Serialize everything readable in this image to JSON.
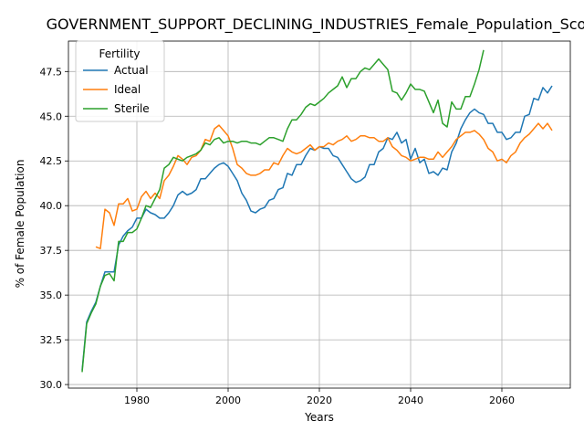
{
  "chart_data": {
    "type": "line",
    "title": "GOVERNMENT_SUPPORT_DECLINING_INDUSTRIES_Female_Population_Scori",
    "xlabel": "Years",
    "ylabel": "% of Female Population",
    "xlim": [
      1965,
      2075
    ],
    "ylim": [
      29.8,
      49.2
    ],
    "x_ticks": [
      1980,
      2000,
      2020,
      2040,
      2060
    ],
    "y_ticks": [
      30.0,
      32.5,
      35.0,
      37.5,
      40.0,
      42.5,
      45.0,
      47.5
    ],
    "grid": true,
    "legend": {
      "title": "Fertility",
      "placement": "upper-left"
    },
    "series": [
      {
        "name": "Actual",
        "color": "#1f77b4",
        "points": [
          [
            1968,
            30.8
          ],
          [
            1969,
            33.5
          ],
          [
            1970,
            34.1
          ],
          [
            1971,
            34.6
          ],
          [
            1972,
            35.5
          ],
          [
            1973,
            36.3
          ],
          [
            1974,
            36.3
          ],
          [
            1975,
            36.3
          ],
          [
            1976,
            37.8
          ],
          [
            1977,
            38.3
          ],
          [
            1978,
            38.6
          ],
          [
            1979,
            38.8
          ],
          [
            1980,
            39.3
          ],
          [
            1981,
            39.3
          ],
          [
            1982,
            39.8
          ],
          [
            1983,
            39.6
          ],
          [
            1984,
            39.5
          ],
          [
            1985,
            39.3
          ],
          [
            1986,
            39.3
          ],
          [
            1987,
            39.6
          ],
          [
            1988,
            40.0
          ],
          [
            1989,
            40.6
          ],
          [
            1990,
            40.8
          ],
          [
            1991,
            40.6
          ],
          [
            1992,
            40.7
          ],
          [
            1993,
            40.9
          ],
          [
            1994,
            41.5
          ],
          [
            1995,
            41.5
          ],
          [
            1996,
            41.8
          ],
          [
            1997,
            42.1
          ],
          [
            1998,
            42.3
          ],
          [
            1999,
            42.4
          ],
          [
            2000,
            42.2
          ],
          [
            2001,
            41.8
          ],
          [
            2002,
            41.4
          ],
          [
            2003,
            40.7
          ],
          [
            2004,
            40.3
          ],
          [
            2005,
            39.7
          ],
          [
            2006,
            39.6
          ],
          [
            2007,
            39.8
          ],
          [
            2008,
            39.9
          ],
          [
            2009,
            40.3
          ],
          [
            2010,
            40.4
          ],
          [
            2011,
            40.9
          ],
          [
            2012,
            41.0
          ],
          [
            2013,
            41.8
          ],
          [
            2014,
            41.7
          ],
          [
            2015,
            42.3
          ],
          [
            2016,
            42.3
          ],
          [
            2017,
            42.8
          ],
          [
            2018,
            43.2
          ],
          [
            2019,
            43.1
          ],
          [
            2020,
            43.3
          ],
          [
            2021,
            43.2
          ],
          [
            2022,
            43.2
          ],
          [
            2023,
            42.8
          ],
          [
            2024,
            42.7
          ],
          [
            2025,
            42.3
          ],
          [
            2026,
            41.9
          ],
          [
            2027,
            41.5
          ],
          [
            2028,
            41.3
          ],
          [
            2029,
            41.4
          ],
          [
            2030,
            41.6
          ],
          [
            2031,
            42.3
          ],
          [
            2032,
            42.3
          ],
          [
            2033,
            43.0
          ],
          [
            2034,
            43.2
          ],
          [
            2035,
            43.8
          ],
          [
            2036,
            43.7
          ],
          [
            2037,
            44.1
          ],
          [
            2038,
            43.5
          ],
          [
            2039,
            43.7
          ],
          [
            2040,
            42.6
          ],
          [
            2041,
            43.2
          ],
          [
            2042,
            42.4
          ],
          [
            2043,
            42.6
          ],
          [
            2044,
            41.8
          ],
          [
            2045,
            41.9
          ],
          [
            2046,
            41.7
          ],
          [
            2047,
            42.1
          ],
          [
            2048,
            42.0
          ],
          [
            2049,
            43.0
          ],
          [
            2050,
            43.5
          ],
          [
            2051,
            44.3
          ],
          [
            2052,
            44.8
          ],
          [
            2053,
            45.2
          ],
          [
            2054,
            45.4
          ],
          [
            2055,
            45.2
          ],
          [
            2056,
            45.1
          ],
          [
            2057,
            44.6
          ],
          [
            2058,
            44.6
          ],
          [
            2059,
            44.1
          ],
          [
            2060,
            44.1
          ],
          [
            2061,
            43.7
          ],
          [
            2062,
            43.8
          ],
          [
            2063,
            44.1
          ],
          [
            2064,
            44.1
          ],
          [
            2065,
            45.0
          ],
          [
            2066,
            45.1
          ],
          [
            2067,
            46.0
          ],
          [
            2068,
            45.9
          ],
          [
            2069,
            46.6
          ],
          [
            2070,
            46.3
          ],
          [
            2071,
            46.7
          ]
        ]
      },
      {
        "name": "Ideal",
        "color": "#ff7f0e",
        "points": [
          [
            1971,
            37.7
          ],
          [
            1972,
            37.6
          ],
          [
            1973,
            39.8
          ],
          [
            1974,
            39.6
          ],
          [
            1975,
            38.9
          ],
          [
            1976,
            40.1
          ],
          [
            1977,
            40.1
          ],
          [
            1978,
            40.4
          ],
          [
            1979,
            39.7
          ],
          [
            1980,
            39.8
          ],
          [
            1981,
            40.5
          ],
          [
            1982,
            40.8
          ],
          [
            1983,
            40.4
          ],
          [
            1984,
            40.7
          ],
          [
            1985,
            40.4
          ],
          [
            1986,
            41.4
          ],
          [
            1987,
            41.7
          ],
          [
            1988,
            42.2
          ],
          [
            1989,
            42.8
          ],
          [
            1990,
            42.6
          ],
          [
            1991,
            42.3
          ],
          [
            1992,
            42.7
          ],
          [
            1993,
            42.8
          ],
          [
            1994,
            43.1
          ],
          [
            1995,
            43.7
          ],
          [
            1996,
            43.6
          ],
          [
            1997,
            44.3
          ],
          [
            1998,
            44.5
          ],
          [
            1999,
            44.2
          ],
          [
            2000,
            43.9
          ],
          [
            2001,
            43.2
          ],
          [
            2002,
            42.3
          ],
          [
            2003,
            42.1
          ],
          [
            2004,
            41.8
          ],
          [
            2005,
            41.7
          ],
          [
            2006,
            41.7
          ],
          [
            2007,
            41.8
          ],
          [
            2008,
            42.0
          ],
          [
            2009,
            42.0
          ],
          [
            2010,
            42.4
          ],
          [
            2011,
            42.3
          ],
          [
            2012,
            42.8
          ],
          [
            2013,
            43.2
          ],
          [
            2014,
            43.0
          ],
          [
            2015,
            42.9
          ],
          [
            2016,
            43.0
          ],
          [
            2017,
            43.2
          ],
          [
            2018,
            43.4
          ],
          [
            2019,
            43.1
          ],
          [
            2020,
            43.3
          ],
          [
            2021,
            43.3
          ],
          [
            2022,
            43.5
          ],
          [
            2023,
            43.4
          ],
          [
            2024,
            43.6
          ],
          [
            2025,
            43.7
          ],
          [
            2026,
            43.9
          ],
          [
            2027,
            43.6
          ],
          [
            2028,
            43.7
          ],
          [
            2029,
            43.9
          ],
          [
            2030,
            43.9
          ],
          [
            2031,
            43.8
          ],
          [
            2032,
            43.8
          ],
          [
            2033,
            43.6
          ],
          [
            2034,
            43.6
          ],
          [
            2035,
            43.8
          ],
          [
            2036,
            43.3
          ],
          [
            2037,
            43.1
          ],
          [
            2038,
            42.8
          ],
          [
            2039,
            42.7
          ],
          [
            2040,
            42.5
          ],
          [
            2041,
            42.6
          ],
          [
            2042,
            42.7
          ],
          [
            2043,
            42.7
          ],
          [
            2044,
            42.6
          ],
          [
            2045,
            42.6
          ],
          [
            2046,
            43.0
          ],
          [
            2047,
            42.7
          ],
          [
            2048,
            43.0
          ],
          [
            2049,
            43.3
          ],
          [
            2050,
            43.7
          ],
          [
            2051,
            43.9
          ],
          [
            2052,
            44.1
          ],
          [
            2053,
            44.1
          ],
          [
            2054,
            44.2
          ],
          [
            2055,
            44.0
          ],
          [
            2056,
            43.7
          ],
          [
            2057,
            43.2
          ],
          [
            2058,
            43.0
          ],
          [
            2059,
            42.5
          ],
          [
            2060,
            42.6
          ],
          [
            2061,
            42.4
          ],
          [
            2062,
            42.8
          ],
          [
            2063,
            43.0
          ],
          [
            2064,
            43.5
          ],
          [
            2065,
            43.8
          ],
          [
            2066,
            44.0
          ],
          [
            2067,
            44.3
          ],
          [
            2068,
            44.6
          ],
          [
            2069,
            44.3
          ],
          [
            2070,
            44.6
          ],
          [
            2071,
            44.2
          ]
        ]
      },
      {
        "name": "Sterile",
        "color": "#2ca02c",
        "points": [
          [
            1968,
            30.7
          ],
          [
            1969,
            33.4
          ],
          [
            1970,
            34.0
          ],
          [
            1971,
            34.5
          ],
          [
            1972,
            35.5
          ],
          [
            1973,
            36.1
          ],
          [
            1974,
            36.2
          ],
          [
            1975,
            35.8
          ],
          [
            1976,
            38.0
          ],
          [
            1977,
            38.0
          ],
          [
            1978,
            38.5
          ],
          [
            1979,
            38.5
          ],
          [
            1980,
            38.7
          ],
          [
            1981,
            39.3
          ],
          [
            1982,
            40.0
          ],
          [
            1983,
            39.9
          ],
          [
            1984,
            40.4
          ],
          [
            1985,
            40.9
          ],
          [
            1986,
            42.1
          ],
          [
            1987,
            42.3
          ],
          [
            1988,
            42.7
          ],
          [
            1989,
            42.6
          ],
          [
            1990,
            42.5
          ],
          [
            1991,
            42.7
          ],
          [
            1992,
            42.8
          ],
          [
            1993,
            42.9
          ],
          [
            1994,
            43.1
          ],
          [
            1995,
            43.5
          ],
          [
            1996,
            43.4
          ],
          [
            1997,
            43.7
          ],
          [
            1998,
            43.8
          ],
          [
            1999,
            43.5
          ],
          [
            2000,
            43.6
          ],
          [
            2001,
            43.6
          ],
          [
            2002,
            43.5
          ],
          [
            2003,
            43.6
          ],
          [
            2004,
            43.6
          ],
          [
            2005,
            43.5
          ],
          [
            2006,
            43.5
          ],
          [
            2007,
            43.4
          ],
          [
            2008,
            43.6
          ],
          [
            2009,
            43.8
          ],
          [
            2010,
            43.8
          ],
          [
            2011,
            43.7
          ],
          [
            2012,
            43.6
          ],
          [
            2013,
            44.3
          ],
          [
            2014,
            44.8
          ],
          [
            2015,
            44.8
          ],
          [
            2016,
            45.1
          ],
          [
            2017,
            45.5
          ],
          [
            2018,
            45.7
          ],
          [
            2019,
            45.6
          ],
          [
            2020,
            45.8
          ],
          [
            2021,
            46.0
          ],
          [
            2022,
            46.3
          ],
          [
            2023,
            46.5
          ],
          [
            2024,
            46.7
          ],
          [
            2025,
            47.2
          ],
          [
            2026,
            46.6
          ],
          [
            2027,
            47.1
          ],
          [
            2028,
            47.1
          ],
          [
            2029,
            47.5
          ],
          [
            2030,
            47.7
          ],
          [
            2031,
            47.6
          ],
          [
            2032,
            47.9
          ],
          [
            2033,
            48.2
          ],
          [
            2034,
            47.9
          ],
          [
            2035,
            47.6
          ],
          [
            2036,
            46.4
          ],
          [
            2037,
            46.3
          ],
          [
            2038,
            45.9
          ],
          [
            2039,
            46.3
          ],
          [
            2040,
            46.8
          ],
          [
            2041,
            46.5
          ],
          [
            2042,
            46.5
          ],
          [
            2043,
            46.4
          ],
          [
            2044,
            45.8
          ],
          [
            2045,
            45.2
          ],
          [
            2046,
            45.9
          ],
          [
            2047,
            44.6
          ],
          [
            2048,
            44.4
          ],
          [
            2049,
            45.8
          ],
          [
            2050,
            45.4
          ],
          [
            2051,
            45.4
          ],
          [
            2052,
            46.1
          ],
          [
            2053,
            46.1
          ],
          [
            2054,
            46.8
          ],
          [
            2055,
            47.6
          ],
          [
            2056,
            48.7
          ]
        ]
      }
    ]
  }
}
